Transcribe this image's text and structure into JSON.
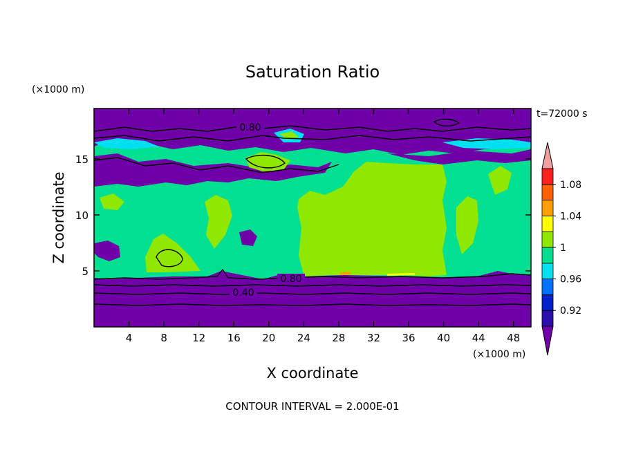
{
  "chart_data": {
    "type": "heatmap",
    "title": "Saturation Ratio",
    "xlabel": "X coordinate",
    "ylabel": "Z coordinate",
    "x_unit": "(×1000 m)",
    "y_unit": "(×1000 m)",
    "time_label": "t=72000 s",
    "footer": "CONTOUR INTERVAL = 2.000E-01",
    "xlim": [
      0,
      50
    ],
    "ylim": [
      0,
      19.5
    ],
    "x_ticks": [
      4,
      8,
      12,
      16,
      20,
      24,
      28,
      32,
      36,
      40,
      44,
      48
    ],
    "y_ticks": [
      5,
      10,
      15
    ],
    "contour_interval": 0.2,
    "colorbar": {
      "labels": [
        "0.92",
        "0.96",
        "1",
        "1.04",
        "1.08"
      ],
      "bins": [
        {
          "color": "#7000a8"
        },
        {
          "color": "#2a10a8"
        },
        {
          "color": "#0020c8"
        },
        {
          "color": "#0070ff"
        },
        {
          "color": "#00e0f0"
        },
        {
          "color": "#00e090"
        },
        {
          "color": "#90e800"
        },
        {
          "color": "#ffff00"
        },
        {
          "color": "#ffa000"
        },
        {
          "color": "#ff6000"
        },
        {
          "color": "#ff2020"
        },
        {
          "color": "#f0a0a0"
        }
      ]
    },
    "contour_labels": [
      {
        "text": "0.80",
        "x": 18.0,
        "z": 18.0
      },
      {
        "text": "0.80",
        "x": 22.0,
        "z": 4.4
      },
      {
        "text": "0.40",
        "x": 17.2,
        "z": 3.1
      }
    ],
    "regions": [
      {
        "name": "lower-dry-layer",
        "z_range": [
          0,
          4.6
        ],
        "value_range": [
          0.2,
          0.9
        ],
        "color": "#7000a8"
      },
      {
        "name": "saturated-cloud-layer",
        "z_range": [
          4.6,
          15
        ],
        "value_range": [
          0.96,
          1.02
        ],
        "color": "#00e090"
      },
      {
        "name": "supersaturated-core",
        "x_range": [
          19.5,
          39
        ],
        "z_range": [
          4.8,
          14.8
        ],
        "value_range": [
          1.0,
          1.02
        ],
        "color": "#90e800"
      },
      {
        "name": "upper-dry-layer",
        "z_range": [
          15.5,
          19.5
        ],
        "value_range": [
          0.6,
          0.9
        ],
        "color": "#7000a8"
      }
    ]
  }
}
